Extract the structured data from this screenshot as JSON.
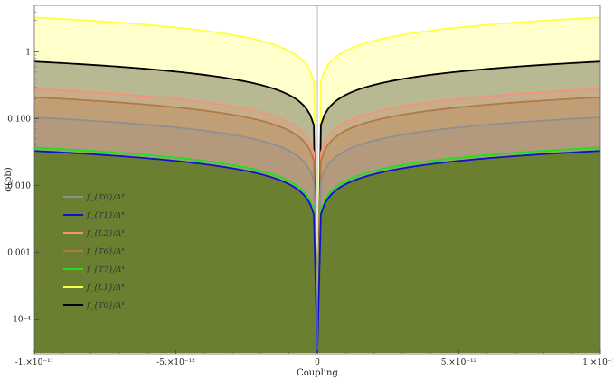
{
  "chart_data": {
    "type": "area",
    "title": "",
    "xlabel": "Coupling",
    "ylabel": "σ(pb)",
    "y_scale": "log",
    "xlim": [
      -1e-11,
      1e-11
    ],
    "ylim": [
      3e-05,
      5
    ],
    "baseline": 3.1e-05,
    "grid": false,
    "legend_position": "left",
    "x_ticks": [
      {
        "value": -1e-11,
        "label": "-1.×10⁻¹¹"
      },
      {
        "value": -5e-12,
        "label": "-5.×10⁻¹²"
      },
      {
        "value": 0,
        "label": "0"
      },
      {
        "value": 5e-12,
        "label": "5.×10⁻¹²"
      },
      {
        "value": 1e-11,
        "label": "1.×10⁻¹¹"
      }
    ],
    "y_ticks": [
      {
        "value": 1,
        "label": "1"
      },
      {
        "value": 0.1,
        "label": "0.100"
      },
      {
        "value": 0.01,
        "label": "0.010"
      },
      {
        "value": 0.001,
        "label": "0.001"
      },
      {
        "value": 0.0001,
        "label": "10⁻⁴"
      }
    ],
    "series": [
      {
        "name": "f_{L1}/Λ⁴",
        "color": "#ffff44",
        "peak": 3.3,
        "exponent": 0.5,
        "fill": true
      },
      {
        "name": "f_{T0}/Λ⁴",
        "color": "#000000",
        "peak": 0.72,
        "exponent": 0.5,
        "fill": true
      },
      {
        "name": "f_{L2}/Λ⁴",
        "color": "#f4937a",
        "peak": 0.28,
        "exponent": 0.5,
        "fill": true
      },
      {
        "name": "f_{T6}/Λ⁴",
        "color": "#b07a40",
        "peak": 0.21,
        "exponent": 0.5,
        "fill": true
      },
      {
        "name": "f_{T0}/Λ⁴",
        "color": "#8f8f8f",
        "peak": 0.105,
        "exponent": 0.5,
        "fill": true
      },
      {
        "name": "f_{T7}/Λ⁴",
        "color": "#22dd22",
        "peak": 0.037,
        "exponent": 0.5,
        "fill": true
      },
      {
        "name": "f_{T1}/Λ⁴",
        "color": "#1111cc",
        "peak": 0.033,
        "exponent": 0.5,
        "fill": true
      }
    ],
    "legend": [
      {
        "label": "f_{T0}/Λ⁴",
        "color": "#8f8f8f"
      },
      {
        "label": "f_{T1}/Λ⁴",
        "color": "#1111cc"
      },
      {
        "label": "f_{L2}/Λ⁴",
        "color": "#f4937a"
      },
      {
        "label": "f_{T6}/Λ⁴",
        "color": "#b07a40"
      },
      {
        "label": "f_{T7}/Λ⁴",
        "color": "#22dd22"
      },
      {
        "label": "f_{L1}/Λ⁴",
        "color": "#ffff44"
      },
      {
        "label": "f_{T0}/Λ⁴",
        "color": "#000000"
      }
    ],
    "base_fill_color": "#6b7f30"
  }
}
